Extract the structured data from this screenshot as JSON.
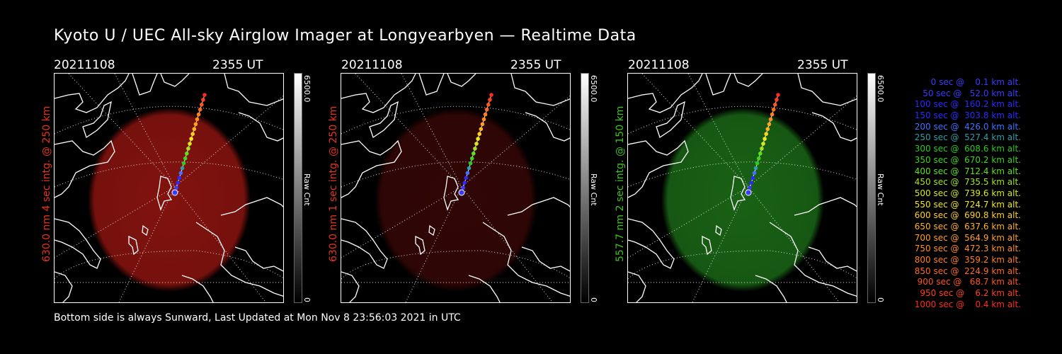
{
  "title": "Kyoto U / UEC All-sky Airglow Imager at Longyearbyen — Realtime Data",
  "panels": [
    {
      "date": "20211108",
      "time": "2355 UT",
      "ylabel": "630.0 nm 4 sec intg. @ 250 km",
      "label_color": "#e8331c",
      "cbar_max": "6500.0",
      "cbar_min": "0",
      "cbar_unit": "Raw Cnt",
      "glow_color": "#b51a14",
      "glow_opacity": 0.72
    },
    {
      "date": "20211108",
      "time": "2355 UT",
      "ylabel": "630.0 nm 1 sec intg. @ 250 km",
      "label_color": "#e8331c",
      "cbar_max": "6500.0",
      "cbar_min": "0",
      "cbar_unit": "Raw Cnt",
      "glow_color": "#5a0c0a",
      "glow_opacity": 0.55
    },
    {
      "date": "20211108",
      "time": "2355 UT",
      "ylabel": "557.7 nm 2 sec intg. @ 150 km",
      "label_color": "#3ec21e",
      "cbar_max": "6500.0",
      "cbar_min": "0",
      "cbar_unit": "Raw Cnt",
      "glow_color": "#1f7a1a",
      "glow_opacity": 0.8
    }
  ],
  "footer": "Bottom side is always Sunward, Last Updated at Mon Nov  8 23:56:03 2021 in UTC",
  "legend": [
    {
      "text": "   0 sec @    0.1 km alt.",
      "color": "#3a3aff"
    },
    {
      "text": "  50 sec @   52.0 km alt.",
      "color": "#3a3aff"
    },
    {
      "text": " 100 sec @  160.2 km alt.",
      "color": "#2a2aff"
    },
    {
      "text": " 150 sec @  303.8 km alt.",
      "color": "#2a2aff"
    },
    {
      "text": " 200 sec @  426.0 km alt.",
      "color": "#3e72ff"
    },
    {
      "text": " 250 sec @  527.4 km alt.",
      "color": "#2e9fa8"
    },
    {
      "text": " 300 sec @  608.6 km alt.",
      "color": "#2fc81e"
    },
    {
      "text": " 350 sec @  670.2 km alt.",
      "color": "#3fd41e"
    },
    {
      "text": " 400 sec @  712.4 km alt.",
      "color": "#5ee01e"
    },
    {
      "text": " 450 sec @  735.5 km alt.",
      "color": "#a4e41e"
    },
    {
      "text": " 500 sec @  739.6 km alt.",
      "color": "#d8e81e"
    },
    {
      "text": " 550 sec @  724.7 km alt.",
      "color": "#f0e81e"
    },
    {
      "text": " 600 sec @  690.8 km alt.",
      "color": "#ffd21e"
    },
    {
      "text": " 650 sec @  637.6 km alt.",
      "color": "#ffb41e"
    },
    {
      "text": " 700 sec @  564.9 km alt.",
      "color": "#ffa01e"
    },
    {
      "text": " 750 sec @  472.3 km alt.",
      "color": "#ff8f1e"
    },
    {
      "text": " 800 sec @  359.2 km alt.",
      "color": "#ff7f1e"
    },
    {
      "text": " 850 sec @  224.9 km alt.",
      "color": "#ff6a1e"
    },
    {
      "text": " 900 sec @   68.7 km alt.",
      "color": "#ff551e"
    },
    {
      "text": " 950 sec @    6.2 km alt.",
      "color": "#ff401e"
    },
    {
      "text": "1000 sec @    0.4 km alt.",
      "color": "#ff2a1e"
    }
  ]
}
